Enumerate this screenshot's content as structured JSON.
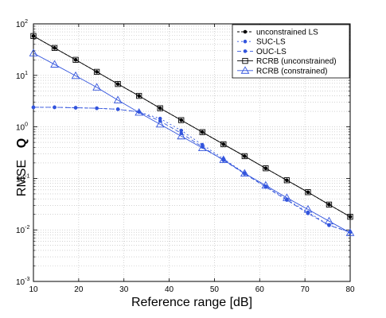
{
  "chart_data": {
    "type": "line",
    "xlabel": "Reference range [dB]",
    "ylabel": "RMSE",
    "ylabel_symbol": "Q",
    "xlim": [
      10,
      80
    ],
    "ylim": [
      0.001,
      100
    ],
    "yscale": "log",
    "grid": true,
    "legend_position": "top-right",
    "x_ticks": [
      "10",
      "20",
      "30",
      "40",
      "50",
      "60",
      "70",
      "80"
    ],
    "y_ticks": [
      {
        "base": "10",
        "exp": "-3"
      },
      {
        "base": "10",
        "exp": "-2"
      },
      {
        "base": "10",
        "exp": "-1"
      },
      {
        "base": "10",
        "exp": "0"
      },
      {
        "base": "10",
        "exp": "1"
      },
      {
        "base": "10",
        "exp": "2"
      }
    ],
    "series": [
      {
        "name": "unconstrained LS",
        "color": "#000000",
        "dash": "3,2",
        "marker": "dot",
        "x": [
          10,
          14.667,
          19.333,
          24,
          28.667,
          33.333,
          38,
          42.667,
          47.333,
          52,
          56.667,
          61.333,
          66,
          70.667,
          75.333,
          80
        ],
        "y": [
          58,
          34,
          20,
          11.7,
          6.8,
          4.0,
          2.3,
          1.35,
          0.79,
          0.46,
          0.27,
          0.157,
          0.092,
          0.054,
          0.031,
          0.018
        ]
      },
      {
        "name": "SUC-LS",
        "color": "#3355dd",
        "dash": "2,3",
        "marker": "dot",
        "x": [
          10,
          14.667,
          19.333,
          24,
          28.667,
          33.333,
          38,
          42.667,
          47.333,
          52,
          56.667,
          61.333,
          66,
          70.667,
          75.333,
          80
        ],
        "y": [
          2.4,
          2.4,
          2.35,
          2.3,
          2.2,
          1.95,
          1.45,
          0.85,
          0.45,
          0.24,
          0.127,
          0.07,
          0.039,
          0.022,
          0.0125,
          0.009
        ]
      },
      {
        "name": "OUC-LS",
        "color": "#3355dd",
        "dash": "5,3",
        "marker": "dot",
        "x": [
          10,
          14.667,
          19.333,
          24,
          28.667,
          33.333,
          38,
          42.667,
          47.333,
          52,
          56.667,
          61.333,
          66,
          70.667,
          75.333,
          80
        ],
        "y": [
          2.4,
          2.4,
          2.35,
          2.3,
          2.2,
          1.95,
          1.3,
          0.75,
          0.41,
          0.225,
          0.123,
          0.068,
          0.038,
          0.021,
          0.0123,
          0.009
        ]
      },
      {
        "name": "RCRB (unconstrained)",
        "color": "#000000",
        "dash": "",
        "marker": "square",
        "x": [
          10,
          14.667,
          19.333,
          24,
          28.667,
          33.333,
          38,
          42.667,
          47.333,
          52,
          56.667,
          61.333,
          66,
          70.667,
          75.333,
          80
        ],
        "y": [
          58,
          34,
          20,
          11.7,
          6.8,
          4.0,
          2.3,
          1.35,
          0.79,
          0.46,
          0.27,
          0.157,
          0.092,
          0.054,
          0.031,
          0.018
        ]
      },
      {
        "name": "RCRB (constrained)",
        "color": "#3355dd",
        "dash": "",
        "marker": "triangle",
        "x": [
          10,
          14.667,
          19.333,
          24,
          28.667,
          33.333,
          38,
          42.667,
          47.333,
          52,
          56.667,
          61.333,
          66,
          70.667,
          75.333,
          80
        ],
        "y": [
          27,
          16.3,
          9.8,
          5.85,
          3.3,
          1.9,
          1.12,
          0.66,
          0.39,
          0.23,
          0.125,
          0.073,
          0.042,
          0.025,
          0.0148,
          0.0088
        ]
      }
    ]
  }
}
